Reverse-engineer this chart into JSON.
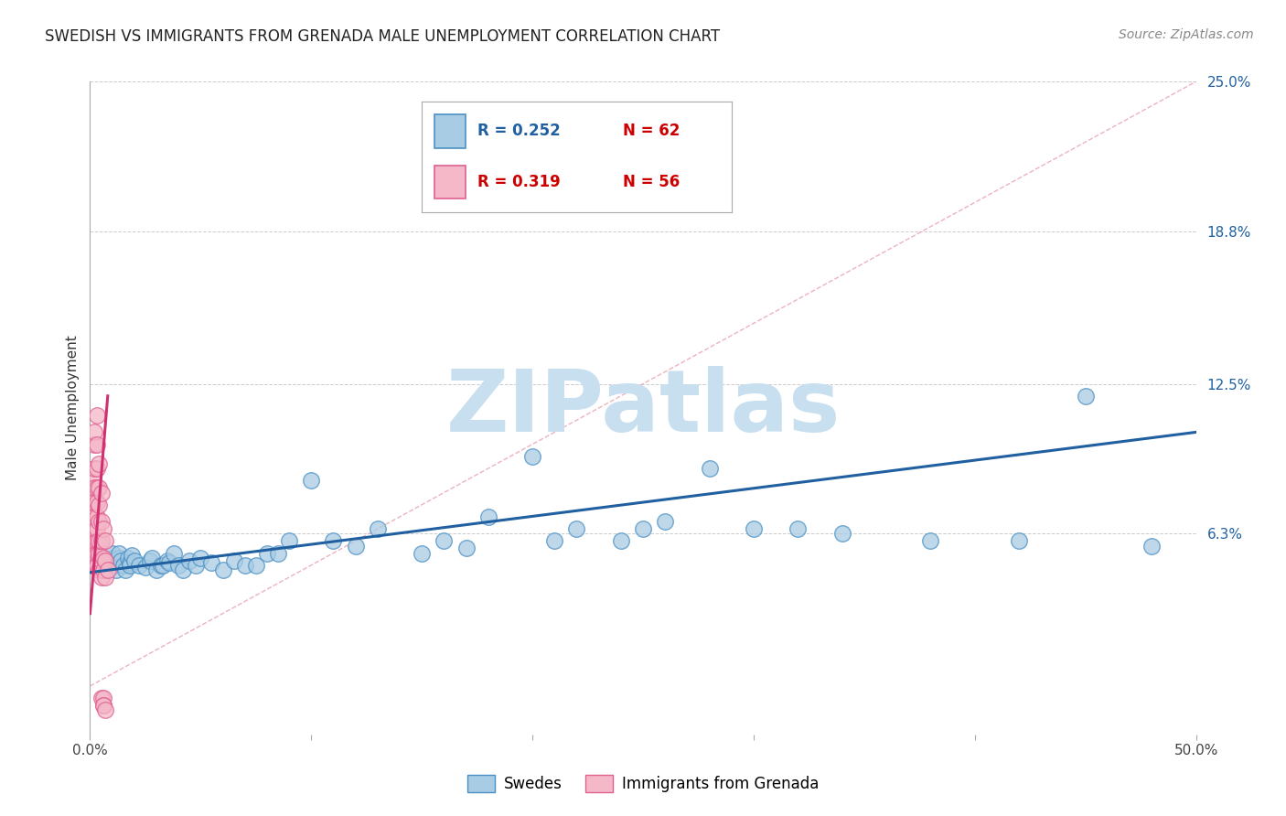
{
  "title": "SWEDISH VS IMMIGRANTS FROM GRENADA MALE UNEMPLOYMENT CORRELATION CHART",
  "source": "Source: ZipAtlas.com",
  "ylabel": "Male Unemployment",
  "right_ytick_values": [
    0.063,
    0.125,
    0.188,
    0.25
  ],
  "right_ytick_labels": [
    "6.3%",
    "12.5%",
    "18.8%",
    "25.0%"
  ],
  "legend_blue_r": "R = 0.252",
  "legend_blue_n": "N = 62",
  "legend_pink_r": "R = 0.319",
  "legend_pink_n": "N = 56",
  "legend_label_blue": "Swedes",
  "legend_label_pink": "Immigrants from Grenada",
  "blue_fill": "#a8cce4",
  "blue_edge": "#4a90c4",
  "pink_fill": "#f4b8c8",
  "pink_edge": "#e06090",
  "blue_line_color": "#2060a0",
  "pink_line_color": "#d03070",
  "dashed_color": "#e8a0b0",
  "watermark_color": "#c8dff0",
  "xmin": 0.0,
  "xmax": 0.5,
  "ymin": -0.02,
  "ymax": 0.25,
  "blue_scatter_x": [
    0.005,
    0.007,
    0.008,
    0.01,
    0.01,
    0.011,
    0.012,
    0.013,
    0.013,
    0.014,
    0.015,
    0.016,
    0.017,
    0.018,
    0.018,
    0.019,
    0.02,
    0.022,
    0.025,
    0.027,
    0.028,
    0.03,
    0.032,
    0.033,
    0.035,
    0.036,
    0.038,
    0.04,
    0.042,
    0.045,
    0.048,
    0.05,
    0.055,
    0.06,
    0.065,
    0.07,
    0.075,
    0.08,
    0.085,
    0.09,
    0.1,
    0.11,
    0.12,
    0.13,
    0.15,
    0.16,
    0.17,
    0.18,
    0.2,
    0.21,
    0.22,
    0.24,
    0.25,
    0.26,
    0.28,
    0.3,
    0.32,
    0.34,
    0.38,
    0.42,
    0.45,
    0.48
  ],
  "blue_scatter_y": [
    0.048,
    0.052,
    0.05,
    0.053,
    0.055,
    0.05,
    0.048,
    0.053,
    0.055,
    0.052,
    0.05,
    0.048,
    0.053,
    0.051,
    0.05,
    0.054,
    0.052,
    0.05,
    0.049,
    0.052,
    0.053,
    0.048,
    0.05,
    0.05,
    0.052,
    0.051,
    0.055,
    0.05,
    0.048,
    0.052,
    0.05,
    0.053,
    0.051,
    0.048,
    0.052,
    0.05,
    0.05,
    0.055,
    0.055,
    0.06,
    0.085,
    0.06,
    0.058,
    0.065,
    0.055,
    0.06,
    0.057,
    0.07,
    0.095,
    0.06,
    0.065,
    0.06,
    0.065,
    0.068,
    0.09,
    0.065,
    0.065,
    0.063,
    0.06,
    0.06,
    0.12,
    0.058
  ],
  "pink_scatter_x": [
    0.001,
    0.001,
    0.001,
    0.001,
    0.001,
    0.001,
    0.001,
    0.001,
    0.001,
    0.001,
    0.001,
    0.001,
    0.002,
    0.002,
    0.002,
    0.002,
    0.002,
    0.002,
    0.002,
    0.002,
    0.002,
    0.002,
    0.003,
    0.003,
    0.003,
    0.003,
    0.003,
    0.003,
    0.003,
    0.003,
    0.003,
    0.003,
    0.004,
    0.004,
    0.004,
    0.004,
    0.004,
    0.004,
    0.004,
    0.005,
    0.005,
    0.005,
    0.005,
    0.005,
    0.005,
    0.006,
    0.006,
    0.006,
    0.006,
    0.006,
    0.006,
    0.007,
    0.007,
    0.007,
    0.007,
    0.008
  ],
  "pink_scatter_y": [
    0.05,
    0.052,
    0.055,
    0.057,
    0.06,
    0.063,
    0.066,
    0.07,
    0.073,
    0.077,
    0.08,
    0.086,
    0.05,
    0.055,
    0.06,
    0.065,
    0.07,
    0.076,
    0.082,
    0.09,
    0.1,
    0.105,
    0.05,
    0.055,
    0.06,
    0.065,
    0.07,
    0.076,
    0.082,
    0.09,
    0.1,
    0.112,
    0.048,
    0.055,
    0.06,
    0.068,
    0.075,
    0.082,
    0.092,
    0.045,
    0.052,
    0.06,
    0.068,
    0.08,
    -0.005,
    -0.005,
    -0.008,
    0.048,
    0.053,
    0.065,
    -0.008,
    0.045,
    0.052,
    0.06,
    -0.01,
    0.048
  ],
  "blue_line_x": [
    0.0,
    0.5
  ],
  "blue_line_y": [
    0.047,
    0.105
  ],
  "pink_line_x": [
    0.0,
    0.008
  ],
  "pink_line_y": [
    0.03,
    0.12
  ],
  "dashed_line_x": [
    0.0,
    0.5
  ],
  "dashed_line_y": [
    0.0,
    0.25
  ],
  "title_fontsize": 12,
  "axis_label_fontsize": 11,
  "tick_fontsize": 11,
  "legend_fontsize": 12,
  "source_fontsize": 10
}
